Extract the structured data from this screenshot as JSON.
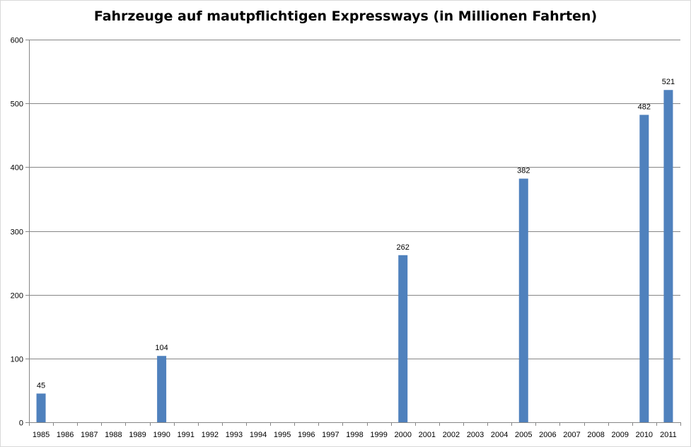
{
  "chart_data": {
    "type": "bar",
    "title": "Fahrzeuge auf mautpflichtigen Expressways (in Millionen  Fahrten)",
    "xlabel": "",
    "ylabel": "",
    "categories": [
      "1985",
      "1986",
      "1987",
      "1988",
      "1989",
      "1990",
      "1991",
      "1992",
      "1993",
      "1994",
      "1995",
      "1996",
      "1997",
      "1998",
      "1999",
      "2000",
      "2001",
      "2002",
      "2003",
      "2004",
      "2005",
      "2006",
      "2007",
      "2008",
      "2009",
      "2010",
      "2011"
    ],
    "values": [
      45,
      null,
      null,
      null,
      null,
      104,
      null,
      null,
      null,
      null,
      null,
      null,
      null,
      null,
      null,
      262,
      null,
      null,
      null,
      null,
      382,
      null,
      null,
      null,
      null,
      482,
      521
    ],
    "data_labels": [
      "45",
      "",
      "",
      "",
      "",
      "104",
      "",
      "",
      "",
      "",
      "",
      "",
      "",
      "",
      "",
      "262",
      "",
      "",
      "",
      "",
      "382",
      "",
      "",
      "",
      "",
      "482",
      "521"
    ],
    "ylim": [
      0,
      600
    ],
    "yticks": [
      0,
      100,
      200,
      300,
      400,
      500,
      600
    ],
    "grid": true,
    "legend": "none",
    "bar_color": "#4f81bd",
    "grid_color": "#868686"
  }
}
